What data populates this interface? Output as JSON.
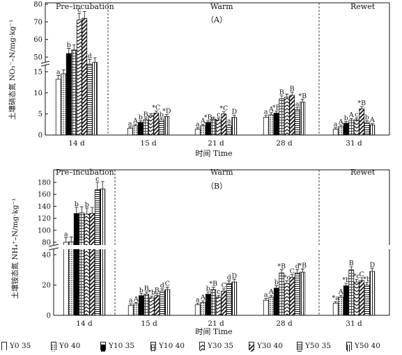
{
  "chart_data": [
    {
      "type": "bar",
      "panel_label": "（A）",
      "ylabel": "土壤硝态氮 NO₃⁻–N/mg·kg⁻¹",
      "xlabel": "时间 Time",
      "phases": [
        "Pre–incubation",
        "Warm",
        "Rewet"
      ],
      "categories": [
        "14 d",
        "15 d",
        "21 d",
        "28 d",
        "31 d"
      ],
      "y_axis_break": true,
      "yticks_lower": [
        "0",
        "5",
        "10",
        "15"
      ],
      "yticks_upper": [
        "50",
        "60",
        "70",
        "80"
      ],
      "series": [
        {
          "name": "Y0 35",
          "values": [
            13.2,
            1.6,
            1.4,
            4.2,
            1.4
          ],
          "letters": [
            "a",
            "a",
            "a",
            "a",
            "a"
          ]
        },
        {
          "name": "Y0 40",
          "values": [
            14.5,
            2.2,
            2.2,
            4.8,
            2.0
          ],
          "letters": [
            "",
            "A",
            "A",
            "A",
            "A"
          ]
        },
        {
          "name": "Y10 35",
          "values": [
            52.0,
            3.0,
            3.0,
            5.2,
            2.8
          ],
          "letters": [
            "b",
            "b",
            "*B",
            "*B",
            "b"
          ]
        },
        {
          "name": "Y10 40",
          "values": [
            54.0,
            3.6,
            3.8,
            8.6,
            3.5
          ],
          "letters": [
            "",
            "B",
            "",
            "B",
            "A"
          ]
        },
        {
          "name": "Y30 35",
          "values": [
            71.0,
            4.6,
            3.6,
            9.0,
            3.6
          ],
          "letters": [
            "c",
            "",
            "c",
            "",
            "c"
          ]
        },
        {
          "name": "Y30 40",
          "values": [
            72.0,
            5.2,
            5.0,
            9.4,
            6.2
          ],
          "letters": [
            "",
            "*C",
            "*C",
            "B",
            "*B"
          ]
        },
        {
          "name": "Y50 35",
          "values": [
            46.0,
            3.6,
            2.2,
            6.0,
            3.0
          ],
          "letters": [
            "d",
            "b",
            "a",
            "a",
            "b"
          ]
        },
        {
          "name": "Y50 40",
          "values": [
            47.0,
            4.4,
            4.2,
            7.8,
            2.4
          ],
          "letters": [
            "",
            "*D",
            "D",
            "*B",
            "A"
          ]
        }
      ]
    },
    {
      "type": "bar",
      "panel_label": "（B）",
      "ylabel": "土壤铵态氮 NH₄⁺–N/mg·kg⁻¹",
      "xlabel": "时间 Time",
      "phases": [
        "Pre–incubation",
        "Warm",
        "Rewet"
      ],
      "categories": [
        "14 d",
        "15 d",
        "21 d",
        "28 d",
        "31 d"
      ],
      "y_axis_break": true,
      "yticks_lower": [
        "0",
        "20",
        "40"
      ],
      "yticks_upper": [
        "80",
        "100",
        "120",
        "140",
        "160",
        "180"
      ],
      "series": [
        {
          "name": "Y0 35",
          "values": [
            80,
            6.5,
            7.0,
            10.0,
            8.0
          ],
          "letters": [
            "a",
            "a",
            "a",
            "a",
            "*a"
          ]
        },
        {
          "name": "Y0 40",
          "values": [
            81,
            7.5,
            8.5,
            12.0,
            12.0
          ],
          "letters": [
            "",
            "A",
            "A",
            "A",
            "A"
          ]
        },
        {
          "name": "Y10 35",
          "values": [
            128,
            13.0,
            14.0,
            18.0,
            19.5
          ],
          "letters": [
            "b",
            "b",
            "b",
            "b",
            "*b"
          ]
        },
        {
          "name": "Y10 40",
          "values": [
            129,
            14.0,
            17.0,
            28.0,
            30.0
          ],
          "letters": [
            "",
            "B",
            "*B",
            "*B",
            "B"
          ]
        },
        {
          "name": "Y30 35",
          "values": [
            127,
            11.5,
            12.0,
            21.0,
            22.0
          ],
          "letters": [
            "b",
            "*b",
            "c",
            "*c",
            "*c"
          ]
        },
        {
          "name": "Y30 40",
          "values": [
            128,
            13.0,
            16.0,
            25.0,
            23.0
          ],
          "letters": [
            "",
            "B",
            "C",
            "C",
            "C"
          ]
        },
        {
          "name": "Y50 35",
          "values": [
            168,
            16.0,
            21.0,
            28.0,
            20.0
          ],
          "letters": [
            "c",
            "d",
            "d",
            "d",
            "*b"
          ]
        },
        {
          "name": "Y50 40",
          "values": [
            169,
            17.0,
            22.0,
            28.5,
            29.0
          ],
          "letters": [
            "",
            "C",
            "D",
            "*B",
            "D"
          ]
        }
      ]
    }
  ]
}
